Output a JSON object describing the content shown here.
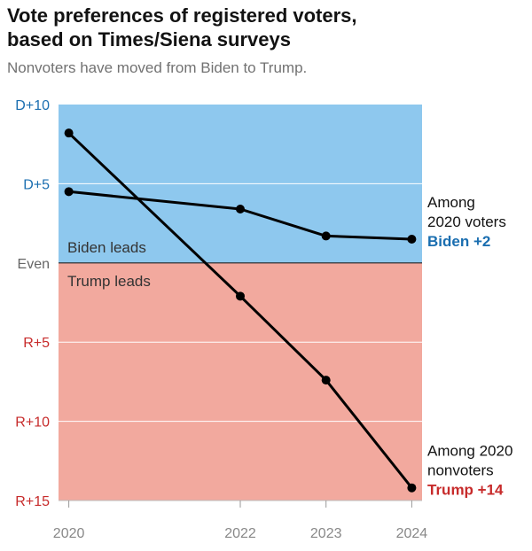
{
  "header": {
    "title_line1": "Vote preferences of registered voters,",
    "title_line2": "based on Times/Siena surveys",
    "subtitle": "Nonvoters have moved from Biden to Trump."
  },
  "colors": {
    "biden_zone": "#8ec8ee",
    "trump_zone": "#f2a99e",
    "dem_label": "#1a6eb0",
    "rep_label": "#c72b2b",
    "line": "#000000",
    "x_tick": "#888888",
    "even_tick": "#666666"
  },
  "chart_data": {
    "type": "line",
    "title": "Vote preferences of registered voters, based on Times/Siena surveys",
    "subtitle": "Nonvoters have moved from Biden to Trump.",
    "x": [
      2020,
      2022,
      2023,
      2024
    ],
    "x_tick_labels": [
      "2020",
      "2022",
      "2023",
      "2024"
    ],
    "ylim": [
      -15,
      10
    ],
    "y_ticks": [
      {
        "value": 10,
        "label": "D+10",
        "side": "dem"
      },
      {
        "value": 5,
        "label": "D+5",
        "side": "dem"
      },
      {
        "value": 0,
        "label": "Even",
        "side": "even"
      },
      {
        "value": -5,
        "label": "R+5",
        "side": "rep"
      },
      {
        "value": -10,
        "label": "R+10",
        "side": "rep"
      },
      {
        "value": -15,
        "label": "R+15",
        "side": "rep"
      }
    ],
    "region_labels": {
      "upper": "Biden leads",
      "lower": "Trump leads"
    },
    "series": [
      {
        "key": "voters",
        "values": [
          4.5,
          3.4,
          1.7,
          1.5
        ],
        "annotation_line1": "Among",
        "annotation_line2": "2020 voters",
        "annotation_value": "Biden +2",
        "annotation_side": "dem"
      },
      {
        "key": "nonvoters",
        "values": [
          8.2,
          -2.1,
          -7.4,
          -14.2
        ],
        "annotation_line1": "Among 2020",
        "annotation_line2": "nonvoters",
        "annotation_value": "Trump +14",
        "annotation_side": "rep"
      }
    ],
    "grid": true
  }
}
